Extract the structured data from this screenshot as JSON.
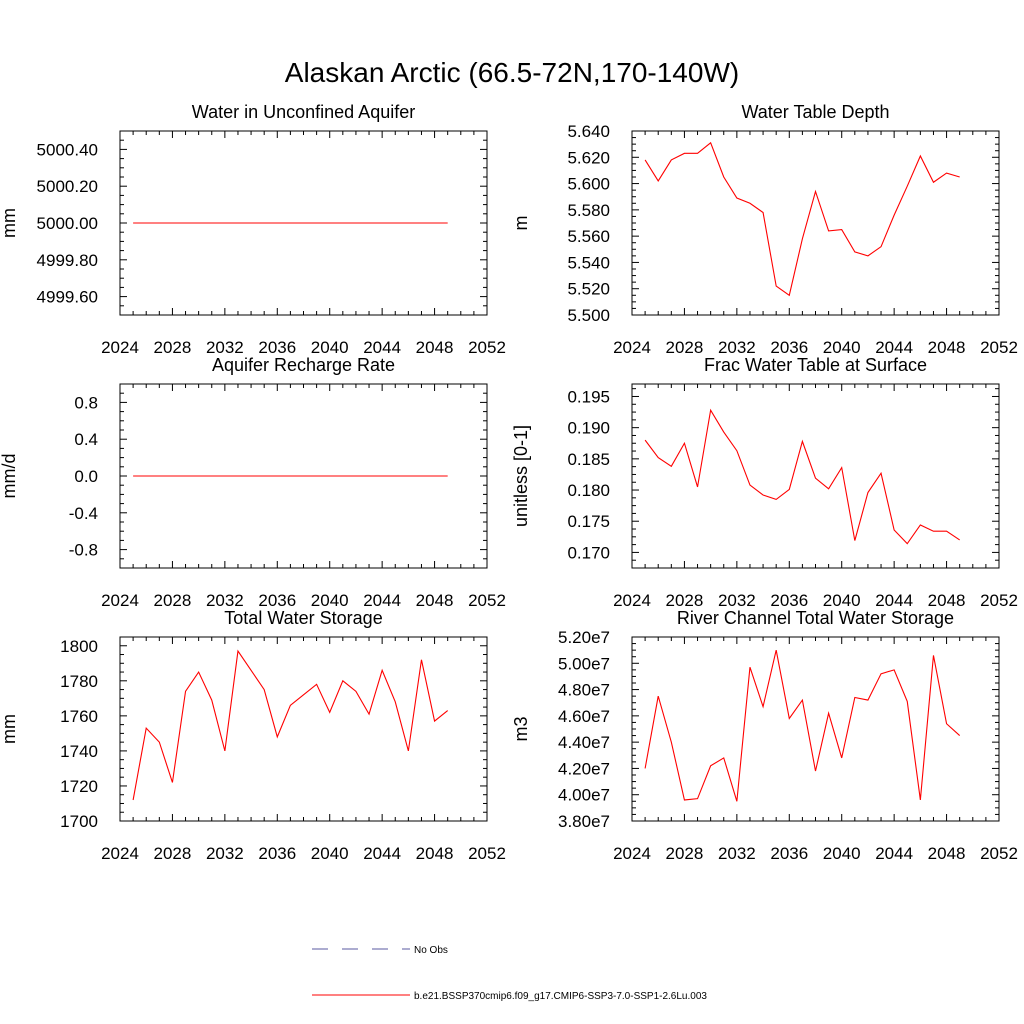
{
  "figure": {
    "title": "Alaskan Arctic (66.5-72N,170-140W)"
  },
  "colors": {
    "series": "#ff0000",
    "no_obs": "#5a5aa0",
    "axis": "#000000"
  },
  "legend": {
    "placement": "bottom-center",
    "entries": [
      {
        "label": "No Obs",
        "style": "dashed",
        "color": "#5a5aa0"
      },
      {
        "label": "b.e21.BSSP370cmip6.f09_g17.CMIP6-SSP3-7.0-SSP1-2.6Lu.003",
        "style": "solid",
        "color": "#ff0000"
      }
    ]
  },
  "chart_data": [
    {
      "type": "line",
      "title": "Water in Unconfined Aquifer",
      "xlabel": "",
      "ylabel": "mm",
      "xlim": [
        2024,
        2052
      ],
      "xticks": [
        2024,
        2028,
        2032,
        2036,
        2040,
        2044,
        2048,
        2052
      ],
      "xtick_labels": [
        "2024",
        "2028",
        "2032",
        "2036",
        "2040",
        "2044",
        "2048",
        "2052"
      ],
      "ylim": [
        4999.5,
        5000.5
      ],
      "yticks": [
        4999.6,
        4999.8,
        5000.0,
        5000.2,
        5000.4
      ],
      "ytick_labels": [
        "4999.60",
        "4999.80",
        "5000.00",
        "5000.20",
        "5000.40"
      ],
      "x": [
        2025,
        2026,
        2027,
        2028,
        2029,
        2030,
        2031,
        2032,
        2033,
        2034,
        2035,
        2036,
        2037,
        2038,
        2039,
        2040,
        2041,
        2042,
        2043,
        2044,
        2045,
        2046,
        2047,
        2048,
        2049
      ],
      "series": [
        {
          "values": [
            5000,
            5000,
            5000,
            5000,
            5000,
            5000,
            5000,
            5000,
            5000,
            5000,
            5000,
            5000,
            5000,
            5000,
            5000,
            5000,
            5000,
            5000,
            5000,
            5000,
            5000,
            5000,
            5000,
            5000,
            5000
          ]
        }
      ]
    },
    {
      "type": "line",
      "title": "Water Table Depth",
      "xlabel": "",
      "ylabel": "m",
      "xlim": [
        2024,
        2052
      ],
      "xticks": [
        2024,
        2028,
        2032,
        2036,
        2040,
        2044,
        2048,
        2052
      ],
      "xtick_labels": [
        "2024",
        "2028",
        "2032",
        "2036",
        "2040",
        "2044",
        "2048",
        "2052"
      ],
      "ylim": [
        5.5,
        5.64
      ],
      "yticks": [
        5.5,
        5.52,
        5.54,
        5.56,
        5.58,
        5.6,
        5.62,
        5.64
      ],
      "ytick_labels": [
        "5.500",
        "5.520",
        "5.540",
        "5.560",
        "5.580",
        "5.600",
        "5.620",
        "5.640"
      ],
      "x": [
        2025,
        2026,
        2027,
        2028,
        2029,
        2030,
        2031,
        2032,
        2033,
        2034,
        2035,
        2036,
        2037,
        2038,
        2039,
        2040,
        2041,
        2042,
        2043,
        2044,
        2045,
        2046,
        2047,
        2048,
        2049
      ],
      "series": [
        {
          "values": [
            5.618,
            5.602,
            5.618,
            5.623,
            5.623,
            5.631,
            5.605,
            5.589,
            5.585,
            5.578,
            5.522,
            5.515,
            5.558,
            5.594,
            5.564,
            5.565,
            5.548,
            5.545,
            5.552,
            5.576,
            5.598,
            5.621,
            5.601,
            5.608,
            5.605
          ]
        }
      ]
    },
    {
      "type": "line",
      "title": "Aquifer Recharge Rate",
      "xlabel": "",
      "ylabel": "mm/d",
      "xlim": [
        2024,
        2052
      ],
      "xticks": [
        2024,
        2028,
        2032,
        2036,
        2040,
        2044,
        2048,
        2052
      ],
      "xtick_labels": [
        "2024",
        "2028",
        "2032",
        "2036",
        "2040",
        "2044",
        "2048",
        "2052"
      ],
      "ylim": [
        -1.0,
        1.0
      ],
      "yticks": [
        -0.8,
        -0.4,
        0.0,
        0.4,
        0.8
      ],
      "ytick_labels": [
        "-0.8",
        "-0.4",
        "0.0",
        "0.4",
        "0.8"
      ],
      "x": [
        2025,
        2026,
        2027,
        2028,
        2029,
        2030,
        2031,
        2032,
        2033,
        2034,
        2035,
        2036,
        2037,
        2038,
        2039,
        2040,
        2041,
        2042,
        2043,
        2044,
        2045,
        2046,
        2047,
        2048,
        2049
      ],
      "series": [
        {
          "values": [
            0,
            0,
            0,
            0,
            0,
            0,
            0,
            0,
            0,
            0,
            0,
            0,
            0,
            0,
            0,
            0,
            0,
            0,
            0,
            0,
            0,
            0,
            0,
            0,
            0
          ]
        }
      ]
    },
    {
      "type": "line",
      "title": "Frac Water Table at Surface",
      "xlabel": "",
      "ylabel": "unitless [0-1]",
      "xlim": [
        2024,
        2052
      ],
      "xticks": [
        2024,
        2028,
        2032,
        2036,
        2040,
        2044,
        2048,
        2052
      ],
      "xtick_labels": [
        "2024",
        "2028",
        "2032",
        "2036",
        "2040",
        "2044",
        "2048",
        "2052"
      ],
      "ylim": [
        0.1675,
        0.197
      ],
      "yticks": [
        0.17,
        0.175,
        0.18,
        0.185,
        0.19,
        0.195
      ],
      "ytick_labels": [
        "0.170",
        "0.175",
        "0.180",
        "0.185",
        "0.190",
        "0.195"
      ],
      "x": [
        2025,
        2026,
        2027,
        2028,
        2029,
        2030,
        2031,
        2032,
        2033,
        2034,
        2035,
        2036,
        2037,
        2038,
        2039,
        2040,
        2041,
        2042,
        2043,
        2044,
        2045,
        2046,
        2047,
        2048,
        2049
      ],
      "series": [
        {
          "values": [
            0.188,
            0.1852,
            0.1838,
            0.1875,
            0.1805,
            0.1928,
            0.1893,
            0.1863,
            0.1808,
            0.1792,
            0.1785,
            0.1801,
            0.1878,
            0.1819,
            0.1802,
            0.1836,
            0.1719,
            0.1796,
            0.1827,
            0.1736,
            0.1714,
            0.1744,
            0.1734,
            0.1734,
            0.172
          ]
        }
      ]
    },
    {
      "type": "line",
      "title": "Total Water Storage",
      "xlabel": "",
      "ylabel": "mm",
      "xlim": [
        2024,
        2052
      ],
      "xticks": [
        2024,
        2028,
        2032,
        2036,
        2040,
        2044,
        2048,
        2052
      ],
      "xtick_labels": [
        "2024",
        "2028",
        "2032",
        "2036",
        "2040",
        "2044",
        "2048",
        "2052"
      ],
      "ylim": [
        1700,
        1805
      ],
      "yticks": [
        1700,
        1720,
        1740,
        1760,
        1780,
        1800
      ],
      "ytick_labels": [
        "1700",
        "1720",
        "1740",
        "1760",
        "1780",
        "1800"
      ],
      "x": [
        2025,
        2026,
        2027,
        2028,
        2029,
        2030,
        2031,
        2032,
        2033,
        2034,
        2035,
        2036,
        2037,
        2038,
        2039,
        2040,
        2041,
        2042,
        2043,
        2044,
        2045,
        2046,
        2047,
        2048,
        2049
      ],
      "series": [
        {
          "values": [
            1712,
            1753,
            1745,
            1722,
            1774,
            1785,
            1769,
            1740,
            1797,
            1786,
            1775,
            1748,
            1766,
            1772,
            1778,
            1762,
            1780,
            1774,
            1761,
            1786,
            1768,
            1740,
            1792,
            1757,
            1763
          ]
        }
      ]
    },
    {
      "type": "line",
      "title": "River Channel Total Water Storage",
      "xlabel": "",
      "ylabel": "m3",
      "xlim": [
        2024,
        2052
      ],
      "xticks": [
        2024,
        2028,
        2032,
        2036,
        2040,
        2044,
        2048,
        2052
      ],
      "xtick_labels": [
        "2024",
        "2028",
        "2032",
        "2036",
        "2040",
        "2044",
        "2048",
        "2052"
      ],
      "ylim": [
        38000000,
        52000000
      ],
      "yticks": [
        38000000,
        40000000,
        42000000,
        44000000,
        46000000,
        48000000,
        50000000,
        52000000
      ],
      "ytick_labels": [
        "3.80e7",
        "4.00e7",
        "4.20e7",
        "4.40e7",
        "4.60e7",
        "4.80e7",
        "5.00e7",
        "5.20e7"
      ],
      "x": [
        2025,
        2026,
        2027,
        2028,
        2029,
        2030,
        2031,
        2032,
        2033,
        2034,
        2035,
        2036,
        2037,
        2038,
        2039,
        2040,
        2041,
        2042,
        2043,
        2044,
        2045,
        2046,
        2047,
        2048,
        2049
      ],
      "series": [
        {
          "values": [
            42000000,
            47500000,
            44000000,
            39600000,
            39700000,
            42200000,
            42800000,
            39500000,
            49700000,
            46700000,
            51000000,
            45800000,
            47200000,
            41800000,
            46200000,
            42800000,
            47400000,
            47200000,
            49200000,
            49500000,
            47100000,
            39600000,
            50600000,
            45400000,
            44500000
          ]
        }
      ]
    }
  ]
}
